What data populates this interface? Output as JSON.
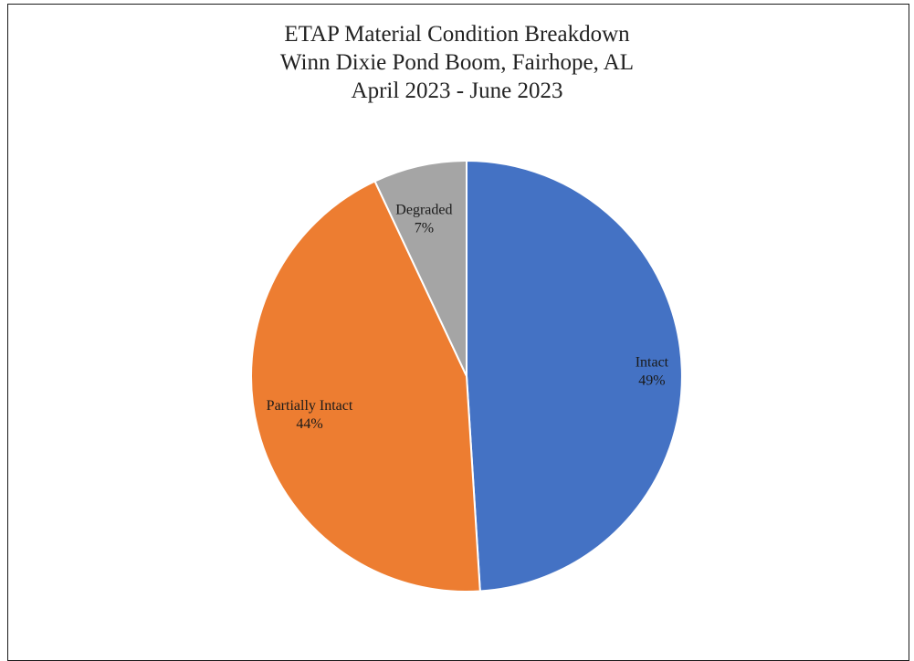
{
  "chart_data": {
    "type": "pie",
    "title": [
      "ETAP Material Condition Breakdown",
      "Winn Dixie Pond Boom, Fairhope, AL",
      "April 2023 - June 2023"
    ],
    "slices": [
      {
        "name": "Intact",
        "value": 49,
        "label": "49%",
        "color": "#4472C4"
      },
      {
        "name": "Partially Intact",
        "value": 44,
        "label": "44%",
        "color": "#ED7D31"
      },
      {
        "name": "Degraded",
        "value": 7,
        "label": "7%",
        "color": "#A5A5A5"
      }
    ],
    "start_angle_deg": 0,
    "direction": "clockwise",
    "slice_border_color": "#FFFFFF",
    "legend": "none",
    "data_labels": "inside"
  }
}
